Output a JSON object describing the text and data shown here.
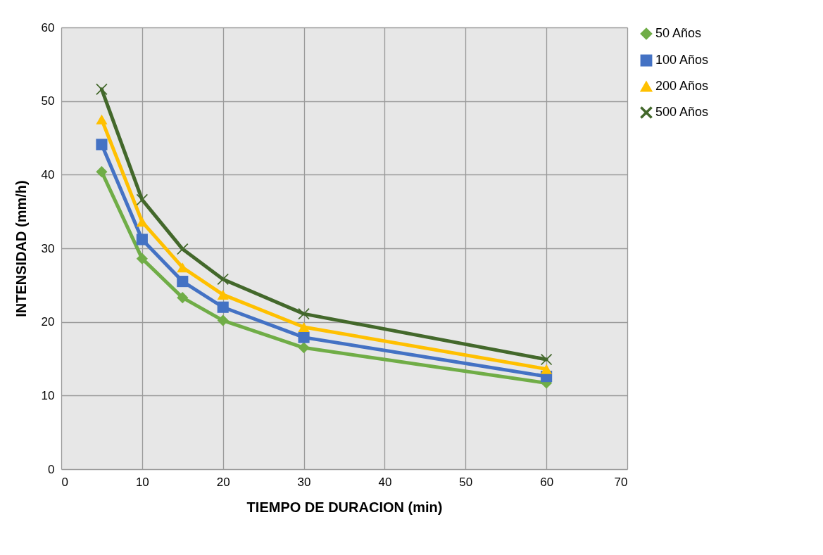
{
  "chart_data": {
    "type": "line",
    "xlabel": "TIEMPO DE DURACION (min)",
    "ylabel": "INTENSIDAD (mm/h)",
    "x": [
      5,
      10,
      15,
      20,
      30,
      60
    ],
    "xlim": [
      0,
      70
    ],
    "xticks": [
      0,
      10,
      20,
      30,
      40,
      50,
      60,
      70
    ],
    "ylim": [
      0,
      60
    ],
    "yticks": [
      0,
      10,
      20,
      30,
      40,
      50,
      60
    ],
    "grid": true,
    "legend": "right",
    "line_style": "solid",
    "series": [
      {
        "name": "50 Años",
        "color": "#70ad47",
        "marker": "diamond",
        "values": [
          40.4,
          28.6,
          23.3,
          20.2,
          16.5,
          11.7
        ]
      },
      {
        "name": "100 Años",
        "color": "#4472c4",
        "marker": "square",
        "values": [
          44.1,
          31.2,
          25.5,
          22.0,
          17.9,
          12.6
        ]
      },
      {
        "name": "200 Años",
        "color": "#ffc000",
        "marker": "triangle",
        "values": [
          47.5,
          33.6,
          27.4,
          23.7,
          19.3,
          13.6
        ]
      },
      {
        "name": "500 Años",
        "color": "#43682b",
        "marker": "cross",
        "values": [
          51.6,
          36.6,
          29.9,
          25.8,
          21.1,
          14.9
        ]
      }
    ]
  }
}
